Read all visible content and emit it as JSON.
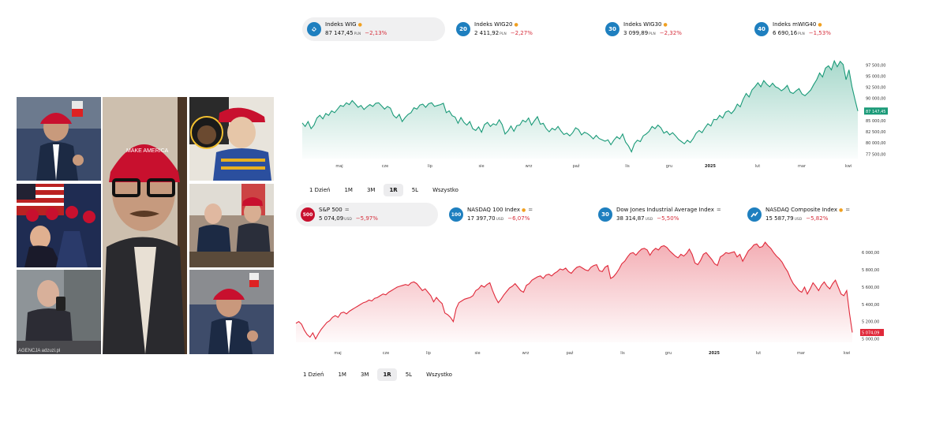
{
  "collage": {
    "watermark": "AGENCJA adzuzi.pl"
  },
  "wig": {
    "indices": [
      {
        "badge": "",
        "name": "Indeks WIG",
        "value": "87 147,45",
        "currency": "PLN",
        "change": "−2,13%",
        "color": "#1e7fbf",
        "active": true
      },
      {
        "badge": "20",
        "name": "Indeks WIG20",
        "value": "2 411,92",
        "currency": "PLN",
        "change": "−2,27%",
        "color": "#1e7fbf"
      },
      {
        "badge": "30",
        "name": "Indeks WIG30",
        "value": "3 099,89",
        "currency": "PLN",
        "change": "−2,32%",
        "color": "#1e7fbf"
      },
      {
        "badge": "40",
        "name": "Indeks mWIG40",
        "value": "6 690,16",
        "currency": "PLN",
        "change": "−1,53%",
        "color": "#1e7fbf"
      }
    ],
    "periods": [
      "1 Dzień",
      "1M",
      "3M",
      "1R",
      "5L",
      "Wszystko"
    ],
    "active_period": "1R"
  },
  "us": {
    "indices": [
      {
        "badge": "500",
        "name": "S&P 500",
        "suffix": "=",
        "value": "5 074,09",
        "currency": "USD",
        "change": "−5,97%",
        "color": "#c8102e",
        "active": true
      },
      {
        "badge": "100",
        "name": "NASDAQ 100 Index",
        "suffix": "=",
        "value": "17 397,70",
        "currency": "USD",
        "change": "−6,07%",
        "color": "#1e7fbf"
      },
      {
        "badge": "30",
        "name": "Dow Jones Industrial Average Index",
        "suffix": "=",
        "value": "38 314,87",
        "currency": "USD",
        "change": "−5,50%",
        "color": "#1e7fbf"
      },
      {
        "badge": "",
        "name": "NASDAQ Composite Index",
        "suffix": "=",
        "value": "15 587,79",
        "currency": "USD",
        "change": "−5,82%",
        "color": "#1e7fbf"
      }
    ],
    "periods": [
      "1 Dzień",
      "1M",
      "3M",
      "1R",
      "5L",
      "Wszystko"
    ],
    "active_period": "1R"
  },
  "chart_data": [
    {
      "type": "area",
      "title": "",
      "xlabel": "",
      "ylabel": "",
      "color": "#1a9a78",
      "x_ticks": [
        "maj",
        "cze",
        "lip",
        "sie",
        "wrz",
        "paź",
        "lis",
        "gru",
        "2025",
        "lut",
        "mar",
        "kwi"
      ],
      "y_ticks": [
        77500,
        80000,
        82500,
        85000,
        87500,
        90000,
        92500,
        95000,
        97500
      ],
      "y_tick_labels": [
        "77 500,00",
        "80 000,00",
        "82 500,00",
        "85 000,00",
        "87 500,00",
        "90 000,00",
        "92 500,00",
        "95 000,00",
        "97 500,00"
      ],
      "ylim": [
        76500,
        99500
      ],
      "last_value_label": "87 147,45",
      "values": [
        84500,
        83700,
        84800,
        83200,
        84000,
        85600,
        86200,
        85400,
        86600,
        86200,
        87200,
        86800,
        87600,
        88400,
        88200,
        89000,
        88600,
        89500,
        88800,
        88000,
        88400,
        87500,
        88100,
        88600,
        88200,
        88900,
        89000,
        88300,
        87600,
        88200,
        87800,
        86200,
        85600,
        86400,
        84800,
        85700,
        86400,
        86800,
        87900,
        87600,
        88500,
        88700,
        88000,
        88800,
        89000,
        88200,
        88400,
        88600,
        88900,
        86800,
        87200,
        86100,
        85800,
        84400,
        85700,
        84600,
        84000,
        84800,
        83200,
        82800,
        83600,
        82400,
        84100,
        84600,
        83700,
        84300,
        84000,
        85200,
        84100,
        82000,
        82700,
        83800,
        82600,
        83900,
        84000,
        85100,
        84700,
        85600,
        84000,
        85000,
        85900,
        84200,
        84400,
        83200,
        82500,
        83300,
        82900,
        83700,
        82700,
        81900,
        82200,
        81600,
        82300,
        83400,
        83000,
        81800,
        82400,
        82100,
        81600,
        80900,
        81700,
        81000,
        80700,
        80400,
        80700,
        79600,
        80600,
        81400,
        80900,
        82000,
        80200,
        79300,
        78000,
        79800,
        80600,
        80300,
        81600,
        82000,
        82600,
        83700,
        83200,
        84000,
        83400,
        82200,
        82600,
        81800,
        82300,
        81600,
        80800,
        80300,
        79800,
        80600,
        80100,
        81000,
        82200,
        82800,
        82300,
        83400,
        84300,
        83800,
        85300,
        85200,
        86200,
        85600,
        86900,
        87200,
        86600,
        87400,
        88700,
        88100,
        89800,
        91100,
        90300,
        91900,
        92600,
        93500,
        92600,
        94000,
        93200,
        92600,
        93400,
        92600,
        92300,
        91700,
        92200,
        92900,
        91400,
        91100,
        91700,
        92200,
        91000,
        90600,
        91200,
        91900,
        93100,
        94200,
        95700,
        94800,
        96800,
        97300,
        96400,
        98400,
        97100,
        98300,
        97600,
        94200,
        96400,
        92600,
        89800,
        87147
      ]
    },
    {
      "type": "area",
      "title": "",
      "xlabel": "",
      "ylabel": "",
      "color": "#e0293a",
      "x_ticks": [
        "maj",
        "cze",
        "lip",
        "sie",
        "wrz",
        "paź",
        "lis",
        "gru",
        "2025",
        "lut",
        "mar",
        "kwi"
      ],
      "y_ticks": [
        5000,
        5200,
        5400,
        5600,
        5800,
        6000
      ],
      "y_tick_labels": [
        "5 000,00",
        "5 200,00",
        "5 400,00",
        "5 600,00",
        "5 800,00",
        "6 000,00"
      ],
      "ylim": [
        4960,
        6130
      ],
      "last_value_label": "5 074,09",
      "values": [
        5180,
        5200,
        5170,
        5100,
        5050,
        5020,
        5070,
        5000,
        5060,
        5110,
        5150,
        5190,
        5210,
        5250,
        5270,
        5250,
        5300,
        5310,
        5290,
        5320,
        5340,
        5360,
        5380,
        5400,
        5420,
        5430,
        5450,
        5440,
        5470,
        5480,
        5500,
        5520,
        5510,
        5540,
        5560,
        5580,
        5600,
        5610,
        5620,
        5630,
        5620,
        5650,
        5660,
        5640,
        5600,
        5560,
        5580,
        5540,
        5500,
        5430,
        5480,
        5440,
        5410,
        5300,
        5280,
        5250,
        5200,
        5350,
        5420,
        5440,
        5460,
        5470,
        5480,
        5500,
        5560,
        5580,
        5620,
        5600,
        5630,
        5650,
        5560,
        5480,
        5420,
        5460,
        5510,
        5550,
        5590,
        5610,
        5640,
        5600,
        5560,
        5540,
        5620,
        5640,
        5680,
        5700,
        5720,
        5730,
        5700,
        5740,
        5750,
        5730,
        5760,
        5780,
        5810,
        5800,
        5820,
        5780,
        5760,
        5800,
        5830,
        5840,
        5820,
        5800,
        5790,
        5830,
        5850,
        5860,
        5790,
        5780,
        5830,
        5850,
        5700,
        5720,
        5760,
        5810,
        5870,
        5900,
        5950,
        5990,
        6000,
        5970,
        6010,
        6040,
        6050,
        6030,
        5970,
        6020,
        6050,
        6030,
        6070,
        6080,
        6060,
        6020,
        5990,
        5960,
        5940,
        5980,
        5960,
        5990,
        6040,
        5980,
        5880,
        5860,
        5910,
        5980,
        6000,
        5960,
        5920,
        5870,
        5850,
        5950,
        5970,
        6000,
        5990,
        6000,
        6010,
        5950,
        5980,
        5900,
        5960,
        6020,
        6050,
        6090,
        6100,
        6060,
        6070,
        6120,
        6080,
        6050,
        6000,
        5960,
        5930,
        5890,
        5830,
        5780,
        5700,
        5640,
        5600,
        5560,
        5540,
        5600,
        5520,
        5580,
        5650,
        5610,
        5560,
        5620,
        5660,
        5610,
        5580,
        5640,
        5680,
        5600,
        5520,
        5500,
        5560,
        5300,
        5074
      ]
    }
  ]
}
